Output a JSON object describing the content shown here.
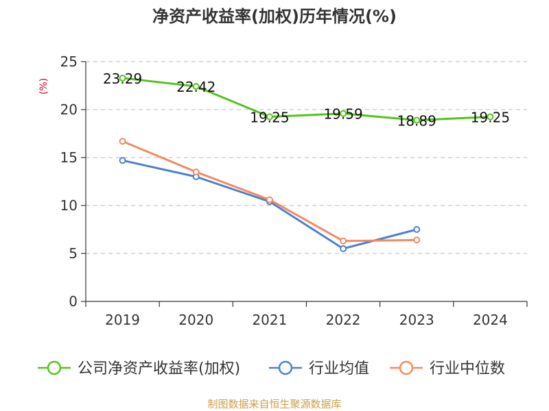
{
  "chart_data": {
    "type": "line",
    "title": "净资产收益率(加权)历年情况(%)",
    "ylabel": "(%)",
    "xlabel": "",
    "categories": [
      "2019",
      "2020",
      "2021",
      "2022",
      "2023",
      "2024"
    ],
    "ylim": [
      0,
      25
    ],
    "yticks": [
      0,
      5,
      10,
      15,
      20,
      25
    ],
    "grid": true,
    "legend_position": "bottom",
    "series": [
      {
        "name": "公司净资产收益率(加权)",
        "color": "#52c41a",
        "values": [
          23.29,
          22.42,
          19.25,
          19.59,
          18.89,
          19.25
        ],
        "labels": [
          "23.29",
          "22.42",
          "19.25",
          "19.59",
          "18.89",
          "19.25"
        ]
      },
      {
        "name": "行业均值",
        "color": "#4a7fd6",
        "values": [
          14.7,
          13.0,
          10.4,
          5.5,
          7.5,
          null
        ]
      },
      {
        "name": "行业中位数",
        "color": "#f4895f",
        "values": [
          16.7,
          13.5,
          10.6,
          6.3,
          6.4,
          null
        ]
      }
    ]
  },
  "footer": {
    "source": "制图数据来自恒生聚源数据库"
  }
}
